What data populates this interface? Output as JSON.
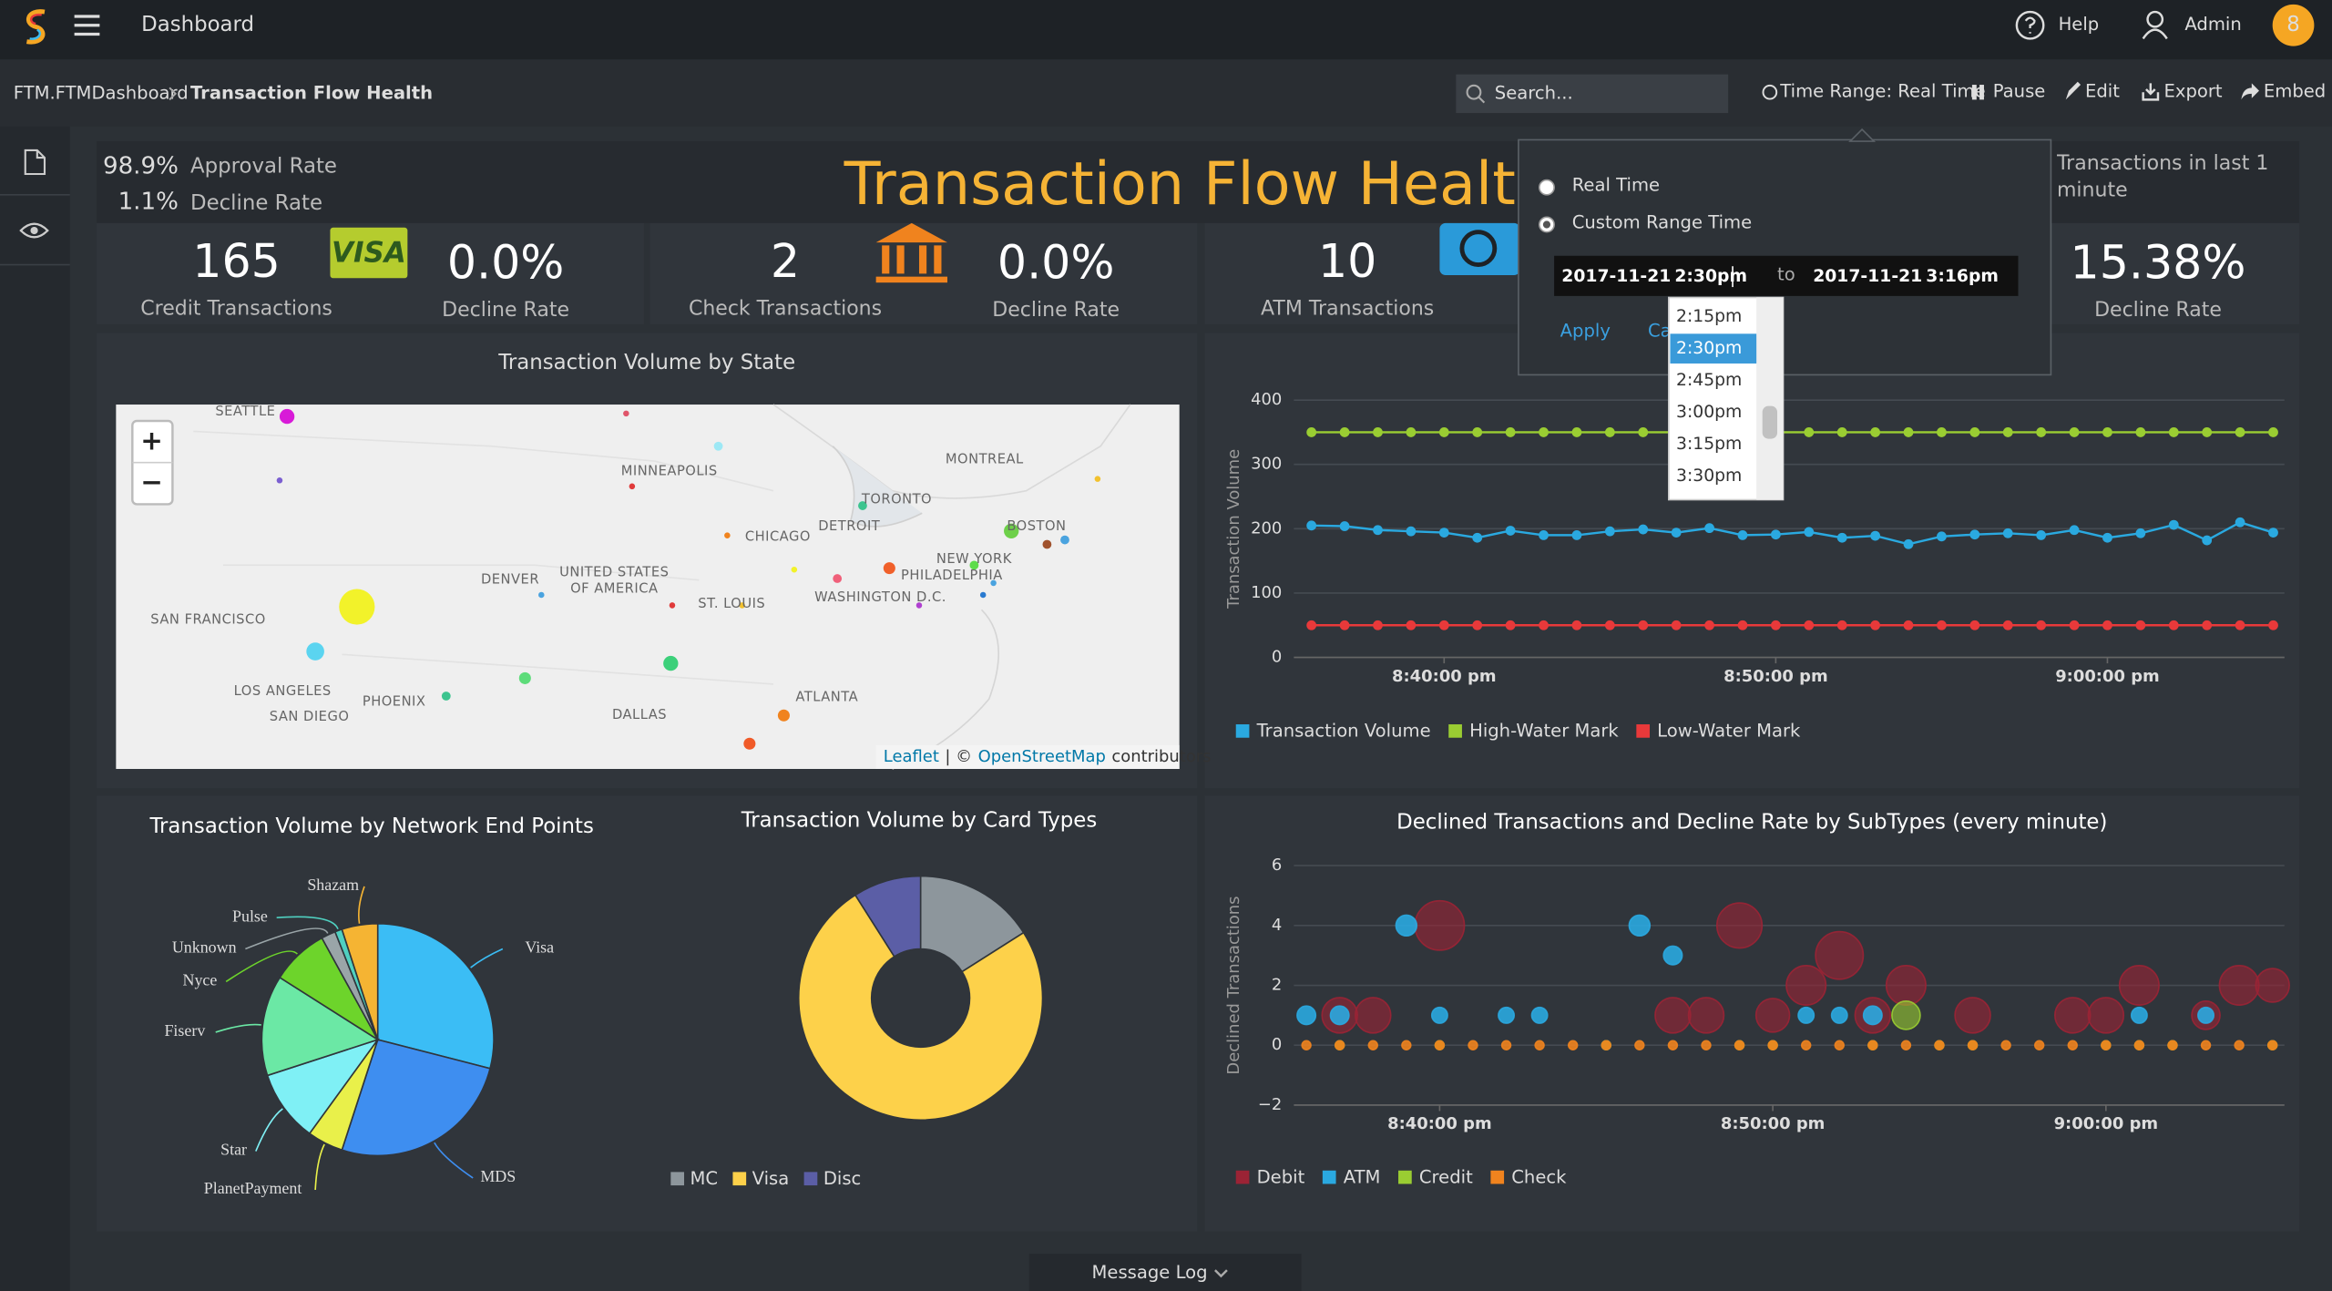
{
  "header": {
    "app_title": "Dashboard",
    "help": "Help",
    "user": "Admin",
    "avatar": "8"
  },
  "breadcrumb": {
    "parent": "FTM.FTMDashboard",
    "current": "Transaction Flow Health"
  },
  "toolbar": {
    "search_placeholder": "Search...",
    "time_range": "Time Range: Real Time",
    "pause": "Pause",
    "edit": "Edit",
    "export": "Export",
    "embed": "Embed"
  },
  "summary": {
    "title": "Transaction Flow Health",
    "approval_value": "98.9%",
    "approval_label": "Approval Rate",
    "decline_value": "1.1%",
    "decline_label": "Decline Rate",
    "last_minute_label": "Transactions in last 1 minute"
  },
  "cards": [
    {
      "count": "165",
      "count_label": "Credit Transactions",
      "logo": "VISA",
      "rate": "0.0%",
      "rate_label": "Decline Rate"
    },
    {
      "count": "2",
      "count_label": "Check Transactions",
      "rate": "0.0%",
      "rate_label": "Decline Rate"
    },
    {
      "count": "10",
      "count_label": "ATM Transactions",
      "rate": "15.38%",
      "rate_label": "Decline Rate"
    }
  ],
  "time_picker": {
    "options": [
      "Real Time",
      "Custom Range Time"
    ],
    "checked": 1,
    "from_date": "2017-11-21",
    "from_time": "2:30pm",
    "to": "to",
    "to_date": "2017-11-21",
    "to_time": "3:16pm",
    "apply": "Apply",
    "cancel": "Ca",
    "times": [
      "2:15pm",
      "2:30pm",
      "2:45pm",
      "3:00pm",
      "3:15pm",
      "3:30pm"
    ],
    "selected": 1
  },
  "map": {
    "title": "Transaction Volume by State",
    "cities": [
      "SEATTLE",
      "MINNEAPOLIS",
      "MONTREAL",
      "TORONTO",
      "CHICAGO",
      "DETROIT",
      "BOSTON",
      "NEW YORK",
      "PHILADELPHIA",
      "WASHINGTON D.C.",
      "DENVER",
      "UNITED STATES",
      "OF AMERICA",
      "ST. LOUIS",
      "SAN FRANCISCO",
      "LOS ANGELES",
      "SAN DIEGO",
      "PHOENIX",
      "DALLAS",
      "ATLANTA"
    ],
    "zoom_in": "+",
    "zoom_out": "−",
    "attribution": [
      "Leaflet",
      "| ©",
      "OpenStreetMap",
      "contributors"
    ]
  },
  "footer": {
    "message_log": "Message Log"
  },
  "chart_data": [
    {
      "type": "line",
      "y_label": "Transaction Volume",
      "x": [
        "8:36:00 pm",
        "8:37:00 pm",
        "8:38:00 pm",
        "8:39:00 pm",
        "8:40:00 pm",
        "8:41:00 pm",
        "8:42:00 pm",
        "8:43:00 pm",
        "8:44:00 pm",
        "8:45:00 pm",
        "8:46:00 pm",
        "8:47:00 pm",
        "8:48:00 pm",
        "8:49:00 pm",
        "8:50:00 pm",
        "8:51:00 pm",
        "8:52:00 pm",
        "8:53:00 pm",
        "8:54:00 pm",
        "8:55:00 pm",
        "8:56:00 pm",
        "8:57:00 pm",
        "8:58:00 pm",
        "8:59:00 pm",
        "9:00:00 pm",
        "9:01:00 pm",
        "9:02:00 pm",
        "9:03:00 pm",
        "9:04:00 pm",
        "9:05:00 pm"
      ],
      "xticks": [
        "8:40:00 pm",
        "8:50:00 pm",
        "9:00:00 pm"
      ],
      "ylim": [
        0,
        400
      ],
      "yticks": [
        0,
        100,
        200,
        300,
        400
      ],
      "grid": true,
      "series": [
        {
          "name": "Transaction Volume",
          "color": "#2aa9e0",
          "values": [
            205,
            204,
            198,
            196,
            194,
            186,
            197,
            190,
            190,
            196,
            199,
            194,
            201,
            190,
            191,
            195,
            186,
            189,
            176,
            188,
            191,
            193,
            190,
            198,
            186,
            193,
            206,
            182,
            210,
            194
          ]
        },
        {
          "name": "High-Water Mark",
          "color": "#9acd32",
          "values": [
            350,
            350,
            350,
            350,
            350,
            350,
            350,
            350,
            350,
            350,
            350,
            350,
            350,
            350,
            350,
            350,
            350,
            350,
            350,
            350,
            350,
            350,
            350,
            350,
            350,
            350,
            350,
            350,
            350,
            350
          ]
        },
        {
          "name": "Low-Water Mark",
          "color": "#e8393a",
          "values": [
            50,
            50,
            50,
            50,
            50,
            50,
            50,
            50,
            50,
            50,
            50,
            50,
            50,
            50,
            50,
            50,
            50,
            50,
            50,
            50,
            50,
            50,
            50,
            50,
            50,
            50,
            50,
            50,
            50,
            50
          ]
        }
      ]
    },
    {
      "type": "pie",
      "title": "Transaction Volume by Network End Points",
      "categories": [
        "Visa",
        "MDS",
        "PlanetPayment",
        "Star",
        "Fiserv",
        "Nyce",
        "Unknown",
        "Pulse",
        "Shazam"
      ],
      "values": [
        29,
        26,
        5,
        10,
        14,
        8,
        2,
        1,
        5
      ],
      "colors": [
        "#3bbdf5",
        "#3e8ef0",
        "#e9f04a",
        "#7ff0f5",
        "#6be8a5",
        "#6dd42b",
        "#9aa5a8",
        "#4fd0c0",
        "#f5b433"
      ]
    },
    {
      "type": "donut",
      "title": "Transaction Volume by Card Types",
      "categories": [
        "MC",
        "Visa",
        "Disc"
      ],
      "values": [
        16,
        75,
        9
      ],
      "colors": [
        "#8d969c",
        "#fdd14a",
        "#5b5ea6"
      ]
    },
    {
      "type": "scatter",
      "title": "Declined Transactions and Decline Rate by SubTypes (every minute)",
      "y_label": "Declined Transactions",
      "xticks": [
        "8:40:00 pm",
        "8:50:00 pm",
        "9:00:00 pm"
      ],
      "ylim": [
        -2,
        6
      ],
      "yticks": [
        {
          "value": -2,
          "label": "−2"
        },
        0,
        2,
        4,
        6
      ],
      "grid": true,
      "series": [
        {
          "name": "Debit",
          "color": "#9b2335",
          "x": [
            "8:37:00 pm",
            "8:38:00 pm",
            "8:40:00 pm",
            "8:47:00 pm",
            "8:48:00 pm",
            "8:49:00 pm",
            "8:50:00 pm",
            "8:51:00 pm",
            "8:52:00 pm",
            "8:53:00 pm",
            "8:54:00 pm",
            "8:56:00 pm",
            "8:59:00 pm",
            "9:00:00 pm",
            "9:01:00 pm",
            "9:03:00 pm",
            "9:04:00 pm",
            "9:05:00 pm"
          ],
          "values": [
            1,
            1,
            4,
            1,
            1,
            4,
            1,
            2,
            3,
            1,
            2,
            1,
            1,
            1,
            2,
            1,
            2,
            2
          ],
          "sizes": [
            15,
            15,
            35,
            15,
            15,
            28,
            13,
            20,
            32,
            15,
            20,
            15,
            15,
            15,
            20,
            8,
            20,
            13
          ]
        },
        {
          "name": "ATM",
          "color": "#2aa9e0",
          "x": [
            "8:36:00 pm",
            "8:37:00 pm",
            "8:39:00 pm",
            "8:40:00 pm",
            "8:42:00 pm",
            "8:43:00 pm",
            "8:45:00 pm",
            "8:46:00 pm",
            "8:47:00 pm",
            "8:51:00 pm",
            "8:52:00 pm",
            "8:53:00 pm",
            "9:01:00 pm",
            "9:03:00 pm"
          ],
          "values": [
            1,
            1,
            4,
            1,
            1,
            1,
            0,
            4,
            3,
            1,
            1,
            1,
            1,
            1
          ],
          "sizes": [
            2,
            2,
            3,
            1,
            1,
            1,
            0,
            3,
            2,
            1,
            1,
            2,
            1,
            1
          ]
        },
        {
          "name": "Credit",
          "color": "#9acd32",
          "x": [
            "8:37:00 pm",
            "8:40:00 pm",
            "8:45:00 pm",
            "8:49:00 pm",
            "8:50:00 pm",
            "8:53:00 pm",
            "8:54:00 pm",
            "8:55:00 pm",
            "8:56:00 pm",
            "9:00:00 pm",
            "9:01:00 pm",
            "9:02:00 pm",
            "9:05:00 pm"
          ],
          "values": [
            0,
            0,
            0,
            0,
            0,
            0,
            1,
            0,
            0,
            0,
            0,
            0,
            0
          ],
          "sizes": [
            0,
            0,
            0,
            0,
            0,
            0,
            8,
            0,
            0,
            0,
            0,
            0,
            0
          ]
        },
        {
          "name": "Check",
          "color": "#f0831e",
          "x": [
            "8:36:00 pm",
            "8:37:00 pm",
            "8:38:00 pm",
            "8:39:00 pm",
            "8:40:00 pm",
            "8:41:00 pm",
            "8:42:00 pm",
            "8:43:00 pm",
            "8:44:00 pm",
            "8:45:00 pm",
            "8:46:00 pm",
            "8:47:00 pm",
            "8:48:00 pm",
            "8:49:00 pm",
            "8:50:00 pm",
            "8:51:00 pm",
            "8:52:00 pm",
            "8:53:00 pm",
            "8:54:00 pm",
            "8:55:00 pm",
            "8:56:00 pm",
            "8:57:00 pm",
            "8:58:00 pm",
            "8:59:00 pm",
            "9:00:00 pm",
            "9:01:00 pm",
            "9:02:00 pm",
            "9:03:00 pm",
            "9:04:00 pm",
            "9:05:00 pm"
          ],
          "values": [
            0,
            0,
            0,
            0,
            0,
            0,
            0,
            0,
            0,
            0,
            0,
            0,
            0,
            0,
            0,
            0,
            0,
            0,
            0,
            0,
            0,
            0,
            0,
            0,
            0,
            0,
            0,
            0,
            0,
            0
          ],
          "sizes": [
            0,
            0,
            0,
            0,
            0,
            0,
            0,
            0,
            0,
            0,
            0,
            0,
            0,
            0,
            0,
            0,
            0,
            0,
            0,
            0,
            0,
            0,
            0,
            0,
            0,
            0,
            0,
            0,
            0,
            0
          ]
        }
      ]
    }
  ]
}
